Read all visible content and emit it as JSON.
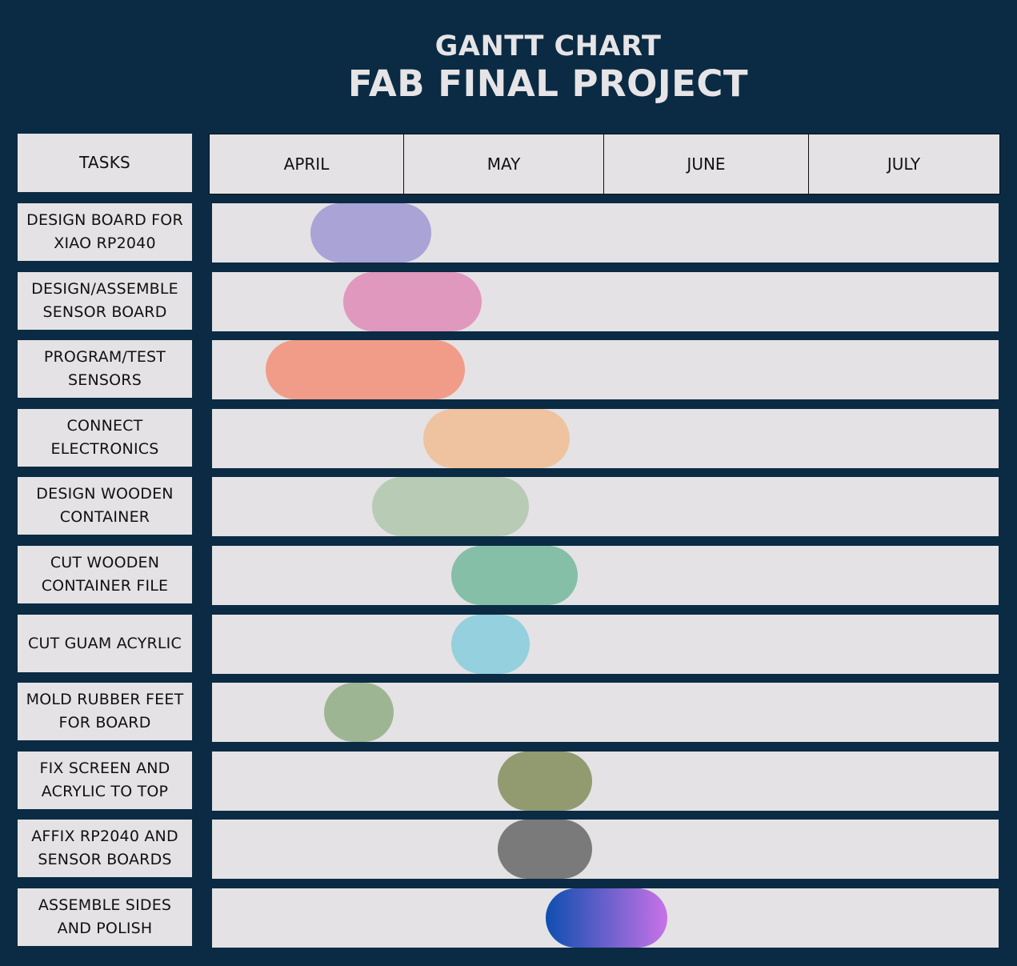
{
  "header": {
    "subtitle": "GANTT CHART",
    "title": "FAB FINAL PROJECT"
  },
  "chart_data": {
    "type": "gantt",
    "title": "FAB FINAL PROJECT",
    "subtitle": "GANTT CHART",
    "task_header": "TASKS",
    "months": [
      "APRIL",
      "MAY",
      "JUNE",
      "JULY"
    ],
    "tasks": [
      {
        "name": "DESIGN BOARD FOR XIAO RP2040",
        "start": 0.52,
        "end": 1.14,
        "color": "#a9a3d6"
      },
      {
        "name": "DESIGN/ASSEMBLE SENSOR BOARD",
        "start": 0.69,
        "end": 1.39,
        "color": "#e198be"
      },
      {
        "name": "PROGRAM/TEST SENSORS",
        "start": 0.29,
        "end": 1.31,
        "color": "#f19c88"
      },
      {
        "name": "CONNECT ELECTRONICS",
        "start": 1.1,
        "end": 1.83,
        "color": "#efc3a0"
      },
      {
        "name": "DESIGN WOODEN CONTAINER",
        "start": 0.84,
        "end": 1.63,
        "color": "#b7cbb5"
      },
      {
        "name": "CUT WOODEN CONTAINER FILE",
        "start": 1.24,
        "end": 1.87,
        "color": "#85bfa8"
      },
      {
        "name": "CUT GUAM ACYRLIC",
        "start": 1.24,
        "end": 1.63,
        "color": "#94d0dd"
      },
      {
        "name": "MOLD RUBBER FEET FOR BOARD",
        "start": 0.59,
        "end": 0.95,
        "color": "#9db593"
      },
      {
        "name": "FIX SCREEN AND ACRYLIC TO TOP",
        "start": 1.47,
        "end": 1.94,
        "color": "#929a70"
      },
      {
        "name": "AFFIX RP2040 AND SENSOR BOARDS",
        "start": 1.47,
        "end": 1.94,
        "color": "#7a7a7a"
      },
      {
        "name": "ASSEMBLE SIDES AND POLISH",
        "start": 1.71,
        "end": 2.31,
        "color": "#0d4fb0",
        "color_end": "#c872e8"
      }
    ]
  }
}
